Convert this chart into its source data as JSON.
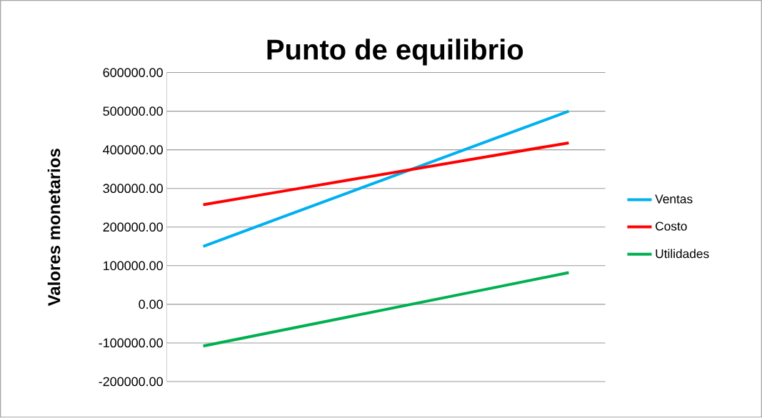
{
  "chart_data": {
    "type": "line",
    "title": "Punto de equilibrio",
    "ylabel": "Valores monetarios",
    "categories": [
      null,
      null,
      null,
      null,
      null,
      null
    ],
    "series": [
      {
        "name": "Ventas",
        "color": "#00b0f0",
        "values": [
          150000,
          220000,
          290000,
          360000,
          430000,
          500000
        ]
      },
      {
        "name": "Costo",
        "color": "#ff0000",
        "values": [
          258000,
          290000,
          322000,
          354000,
          386000,
          418000
        ]
      },
      {
        "name": "Utilidades",
        "color": "#00b050",
        "values": [
          -108000,
          -70000,
          -32000,
          6000,
          44000,
          82000
        ]
      }
    ],
    "ylim": [
      -200000,
      600000
    ],
    "yticks": [
      {
        "value": -200000,
        "label": "-200000.00"
      },
      {
        "value": -100000,
        "label": "-100000.00"
      },
      {
        "value": 0,
        "label": "0.00"
      },
      {
        "value": 100000,
        "label": "100000.00"
      },
      {
        "value": 200000,
        "label": "200000.00"
      },
      {
        "value": 300000,
        "label": "300000.00"
      },
      {
        "value": 400000,
        "label": "400000.00"
      },
      {
        "value": 500000,
        "label": "500000.00"
      },
      {
        "value": 600000,
        "label": "600000.00"
      }
    ],
    "grid": "y",
    "legend": "right",
    "tick_labels": "y",
    "marker": "none",
    "line_style": "solid"
  }
}
